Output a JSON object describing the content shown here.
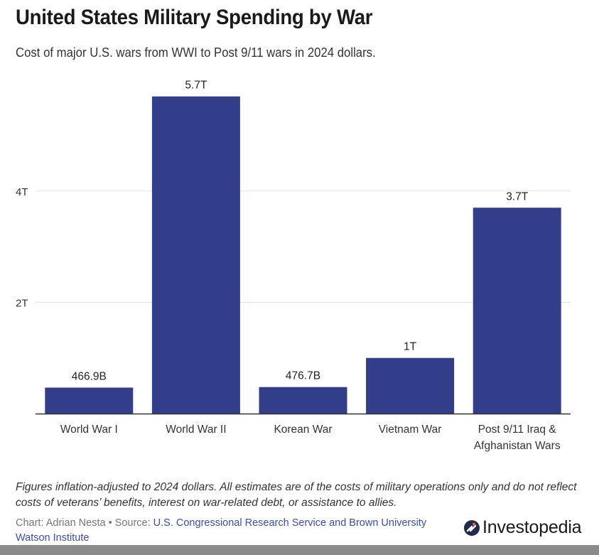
{
  "header": {
    "title": "United States Military Spending by War",
    "subtitle": "Cost of major U.S. wars from WWI to Post 9/11 wars in 2024 dollars."
  },
  "chart_data": {
    "type": "bar",
    "title": "United States Military Spending by War",
    "subtitle": "Cost of major U.S. wars from WWI to Post 9/11 wars in 2024 dollars.",
    "xlabel": "",
    "ylabel": "",
    "unit": "trillion USD (2024 dollars)",
    "categories": [
      "World War I",
      "World War II",
      "Korean War",
      "Vietnam War",
      "Post 9/11 Iraq & Afghanistan Wars"
    ],
    "category_label_lines": [
      [
        "World War I"
      ],
      [
        "World War II"
      ],
      [
        "Korean War"
      ],
      [
        "Vietnam War"
      ],
      [
        "Post 9/11 Iraq &",
        "Afghanistan Wars"
      ]
    ],
    "values": [
      0.4669,
      5.7,
      0.4767,
      1.0,
      3.7
    ],
    "data_labels": [
      "466.9B",
      "5.7T",
      "476.7B",
      "1T",
      "3.7T"
    ],
    "ylim": [
      0,
      6
    ],
    "yticks": [
      2,
      4
    ],
    "ytick_labels": [
      "2T",
      "4T"
    ],
    "grid": true,
    "bar_color": "#323e8a",
    "grid_color": "#e6e6e6",
    "axis_color": "#333333"
  },
  "footer": {
    "note": "Figures inflation-adjusted to 2024 dollars. All estimates are of the costs of military operations only and do not reflect costs of veterans’ benefits, interest on war-related debt, or assistance to allies.",
    "credit_prefix": "Chart: Adrian Nesta • Source: ",
    "source_link": "U.S. Congressional Research Service and Brown University Watson Institute",
    "logo_icon": "investopedia-logo-icon",
    "logo_text": "Investopedia"
  }
}
